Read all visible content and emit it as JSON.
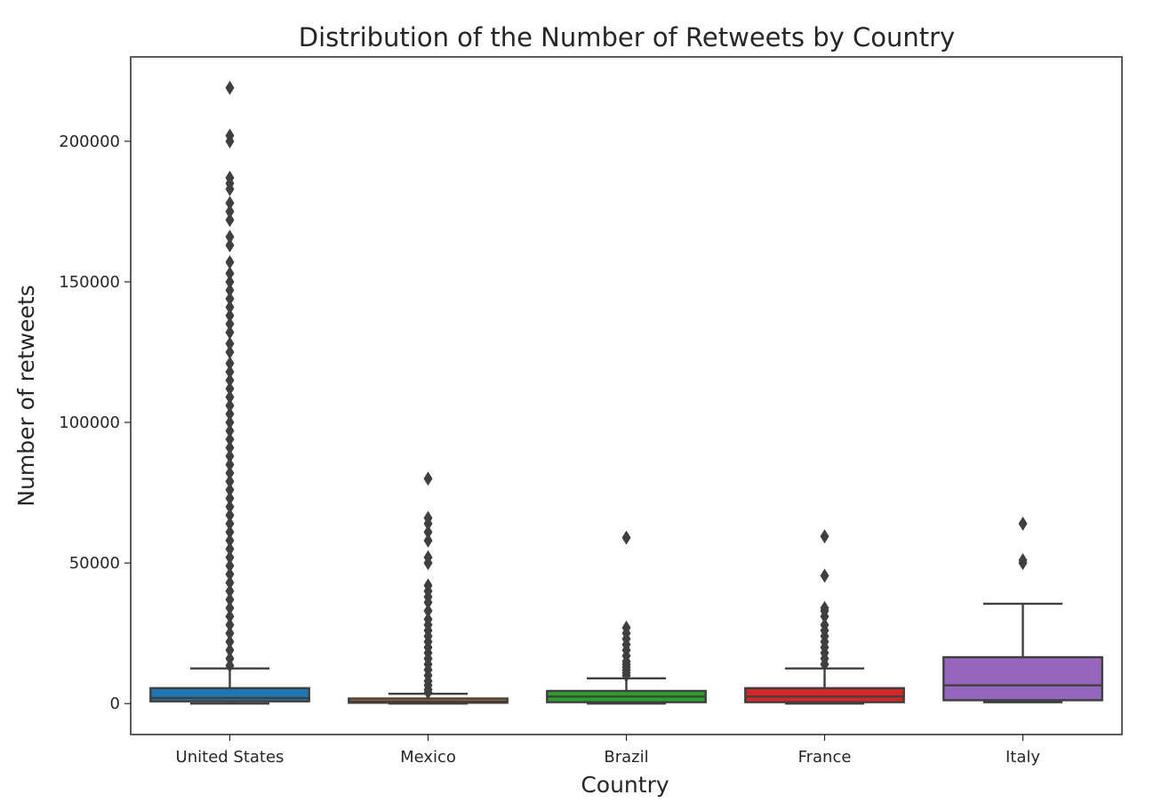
{
  "chart_data": {
    "type": "box",
    "title": "Distribution of the Number of Retweets by Country",
    "xlabel": "Country",
    "ylabel": "Number of retweets",
    "ylim": [
      -11000,
      230000
    ],
    "yticks": [
      0,
      50000,
      100000,
      150000,
      200000
    ],
    "ytick_labels": [
      "0",
      "50000",
      "100000",
      "150000",
      "200000"
    ],
    "grid": false,
    "categories": [
      "United States",
      "Mexico",
      "Brazil",
      "France",
      "Italy"
    ],
    "boxes": [
      {
        "name": "United States",
        "color": "#1f77b4",
        "whisker_low": 0,
        "q1": 800,
        "median": 2000,
        "q3": 5500,
        "whisker_high": 12500,
        "outliers": [
          219000,
          202000,
          200000,
          187000,
          185000,
          183000,
          178000,
          175000,
          172000,
          166000,
          163000,
          157000,
          153000,
          150000,
          147000,
          144000,
          141000,
          138000,
          135000,
          132000,
          128000,
          125000,
          121000,
          118000,
          115000,
          112000,
          109000,
          106000,
          103000,
          100000,
          97000,
          94000,
          91000,
          88000,
          85000,
          82000,
          79000,
          76000,
          73000,
          70000,
          67000,
          64000,
          61000,
          58000,
          55000,
          52000,
          49000,
          46000,
          43000,
          40000,
          37000,
          34000,
          31000,
          28000,
          25000,
          22000,
          19000,
          16000,
          13500
        ]
      },
      {
        "name": "Mexico",
        "color": "#ff7f0e",
        "whisker_low": 0,
        "q1": 300,
        "median": 800,
        "q3": 1800,
        "whisker_high": 3500,
        "outliers": [
          80000,
          66000,
          64000,
          61000,
          58000,
          52000,
          50000,
          42000,
          40000,
          38000,
          36000,
          33000,
          30000,
          28000,
          26000,
          24000,
          22000,
          20000,
          18000,
          16000,
          14000,
          12000,
          10000,
          8000,
          6500,
          5000,
          4000
        ]
      },
      {
        "name": "Brazil",
        "color": "#2ca02c",
        "whisker_low": 0,
        "q1": 500,
        "median": 2500,
        "q3": 4500,
        "whisker_high": 9000,
        "outliers": [
          59000,
          27000,
          25000,
          23000,
          21000,
          19000,
          17000,
          15000,
          14000,
          13000,
          12000,
          11000,
          10000
        ]
      },
      {
        "name": "France",
        "color": "#d62728",
        "whisker_low": 0,
        "q1": 500,
        "median": 2500,
        "q3": 5500,
        "whisker_high": 12500,
        "outliers": [
          59500,
          45500,
          34000,
          33000,
          31000,
          28000,
          26000,
          24000,
          22000,
          20000,
          18000,
          16000,
          14000
        ]
      },
      {
        "name": "Italy",
        "color": "#9467bd",
        "whisker_low": 500,
        "q1": 1200,
        "median": 6500,
        "q3": 16500,
        "whisker_high": 35500,
        "outliers": [
          64000,
          51000,
          50000
        ]
      }
    ]
  }
}
